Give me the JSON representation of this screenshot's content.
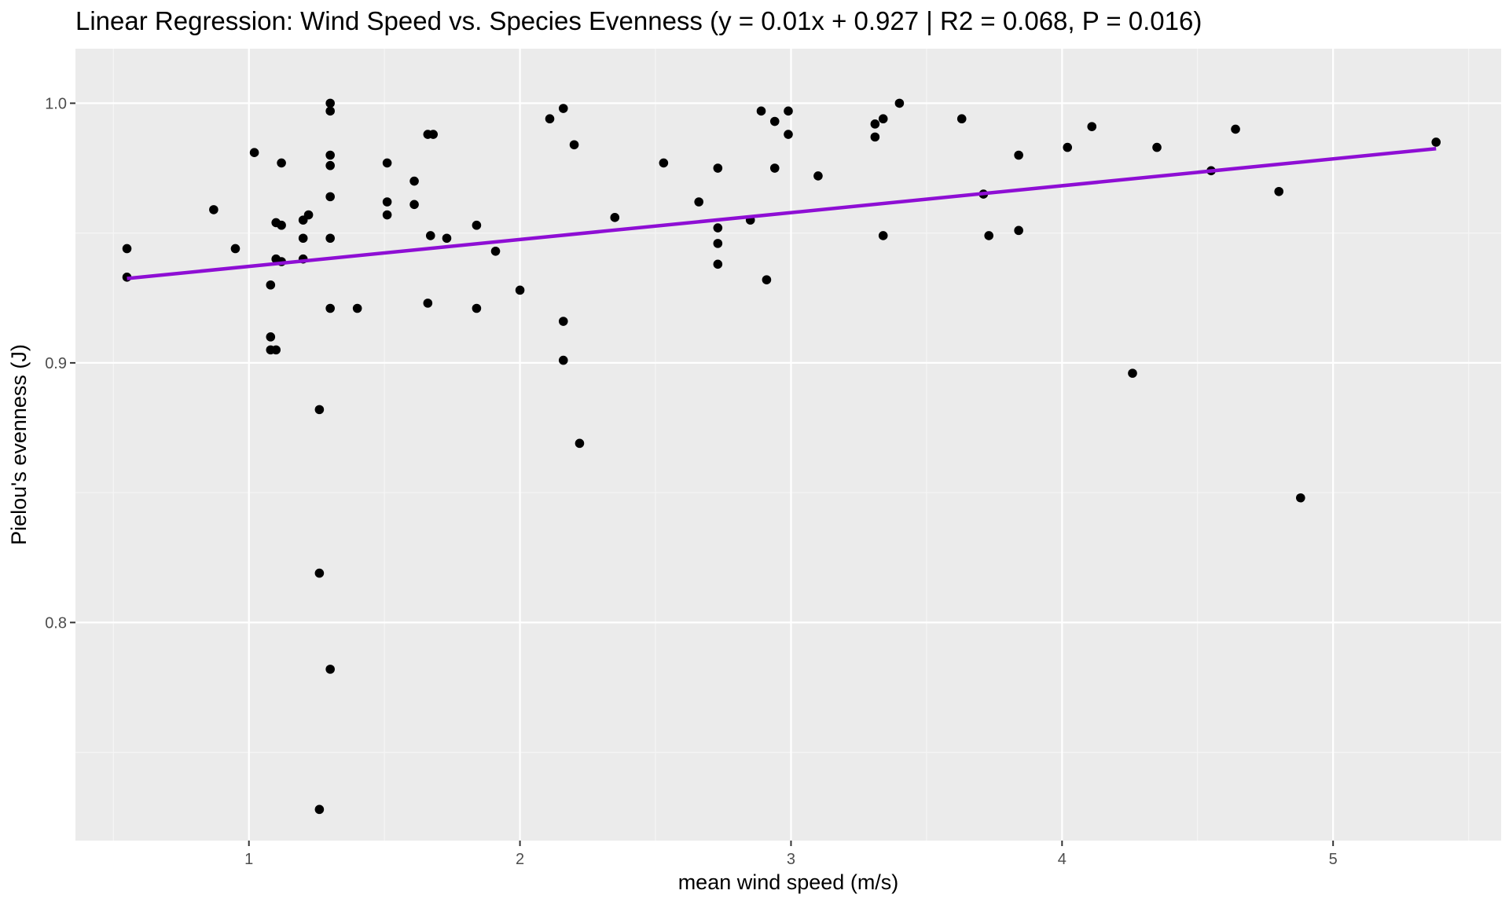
{
  "chart_data": {
    "type": "scatter",
    "title": "Linear Regression: Wind Speed vs. Species Evenness (y = 0.01x + 0.927 | R2 = 0.068, P = 0.016)",
    "xlabel": "mean wind speed  (m/s)",
    "ylabel": "Pielou's evenness (J)",
    "xlim": [
      0.36,
      5.62
    ],
    "ylim": [
      0.716,
      1.021
    ],
    "x_ticks": [
      1,
      2,
      3,
      4,
      5
    ],
    "x_tick_labels": [
      "1",
      "2",
      "3",
      "4",
      "5"
    ],
    "y_ticks": [
      0.8,
      0.9,
      1.0
    ],
    "y_tick_labels": [
      "0.8",
      "0.9",
      "1.0"
    ],
    "grid": true,
    "legend": "none",
    "colors": {
      "panel_background": "#ebebeb",
      "grid_major": "#ffffff",
      "grid_minor": "#f5f5f5",
      "points": "#000000",
      "regression_line": "#8e0ed4",
      "tick_text": "#4d4d4d"
    },
    "series": [
      {
        "type": "scatter",
        "points": [
          [
            0.55,
            0.944
          ],
          [
            0.55,
            0.933
          ],
          [
            0.87,
            0.959
          ],
          [
            0.95,
            0.944
          ],
          [
            1.02,
            0.981
          ],
          [
            1.08,
            0.93
          ],
          [
            1.08,
            0.91
          ],
          [
            1.08,
            0.905
          ],
          [
            1.1,
            0.954
          ],
          [
            1.1,
            0.94
          ],
          [
            1.1,
            0.905
          ],
          [
            1.12,
            0.977
          ],
          [
            1.12,
            0.953
          ],
          [
            1.12,
            0.939
          ],
          [
            1.2,
            0.955
          ],
          [
            1.2,
            0.948
          ],
          [
            1.2,
            0.94
          ],
          [
            1.22,
            0.957
          ],
          [
            1.26,
            0.882
          ],
          [
            1.26,
            0.819
          ],
          [
            1.26,
            0.728
          ],
          [
            1.3,
            1.0
          ],
          [
            1.3,
            0.997
          ],
          [
            1.3,
            0.98
          ],
          [
            1.3,
            0.976
          ],
          [
            1.3,
            0.964
          ],
          [
            1.3,
            0.948
          ],
          [
            1.3,
            0.921
          ],
          [
            1.3,
            0.782
          ],
          [
            1.4,
            0.921
          ],
          [
            1.51,
            0.977
          ],
          [
            1.51,
            0.962
          ],
          [
            1.51,
            0.957
          ],
          [
            1.61,
            0.97
          ],
          [
            1.61,
            0.961
          ],
          [
            1.66,
            0.988
          ],
          [
            1.66,
            0.923
          ],
          [
            1.67,
            0.949
          ],
          [
            1.68,
            0.988
          ],
          [
            1.73,
            0.948
          ],
          [
            1.84,
            0.953
          ],
          [
            1.84,
            0.921
          ],
          [
            1.91,
            0.943
          ],
          [
            2.0,
            0.928
          ],
          [
            2.11,
            0.994
          ],
          [
            2.16,
            0.998
          ],
          [
            2.16,
            0.916
          ],
          [
            2.16,
            0.901
          ],
          [
            2.2,
            0.984
          ],
          [
            2.22,
            0.869
          ],
          [
            2.35,
            0.956
          ],
          [
            2.53,
            0.977
          ],
          [
            2.66,
            0.962
          ],
          [
            2.73,
            0.975
          ],
          [
            2.73,
            0.952
          ],
          [
            2.73,
            0.946
          ],
          [
            2.73,
            0.938
          ],
          [
            2.85,
            0.955
          ],
          [
            2.89,
            0.997
          ],
          [
            2.91,
            0.932
          ],
          [
            2.94,
            0.993
          ],
          [
            2.94,
            0.975
          ],
          [
            2.99,
            0.997
          ],
          [
            2.99,
            0.988
          ],
          [
            3.1,
            0.972
          ],
          [
            3.31,
            0.992
          ],
          [
            3.31,
            0.987
          ],
          [
            3.34,
            0.994
          ],
          [
            3.34,
            0.949
          ],
          [
            3.4,
            1.0
          ],
          [
            3.63,
            0.994
          ],
          [
            3.71,
            0.965
          ],
          [
            3.73,
            0.949
          ],
          [
            3.84,
            0.98
          ],
          [
            3.84,
            0.951
          ],
          [
            4.02,
            0.983
          ],
          [
            4.11,
            0.991
          ],
          [
            4.26,
            0.896
          ],
          [
            4.35,
            0.983
          ],
          [
            4.55,
            0.974
          ],
          [
            4.64,
            0.99
          ],
          [
            4.8,
            0.966
          ],
          [
            4.88,
            0.848
          ],
          [
            5.38,
            0.985
          ]
        ]
      },
      {
        "type": "line",
        "points": [
          [
            0.55,
            0.9325
          ],
          [
            5.38,
            0.9825
          ]
        ]
      }
    ]
  }
}
